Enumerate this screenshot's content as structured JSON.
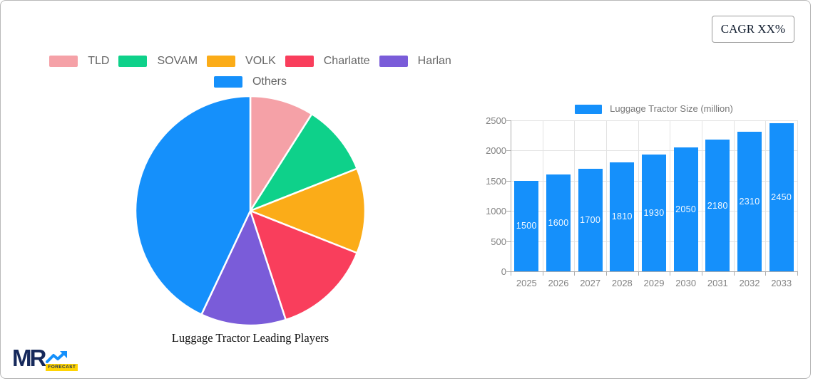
{
  "header": {
    "cagr_label": "CAGR XX%"
  },
  "logo": {
    "mr": "MR",
    "forecast": "FORECAST"
  },
  "chart_data": [
    {
      "type": "pie",
      "title": "Luggage Tractor Leading Players",
      "labels": [
        "TLD",
        "SOVAM",
        "VOLK",
        "Charlatte",
        "Harlan",
        "Others"
      ],
      "values_percent_est": [
        9,
        10,
        12,
        14,
        12,
        43
      ],
      "colors": [
        "#F5A1A7",
        "#0ED18A",
        "#FBAC18",
        "#F93E5C",
        "#7A5CD9",
        "#1590FB"
      ],
      "legend_rows": [
        5,
        1
      ],
      "legend_position": "top",
      "start_angle_deg": 0,
      "direction": "clockwise"
    },
    {
      "type": "bar",
      "legend": "Luggage Tractor Size (million)",
      "categories": [
        "2025",
        "2026",
        "2027",
        "2028",
        "2029",
        "2030",
        "2031",
        "2032",
        "2033"
      ],
      "values": [
        1500,
        1600,
        1700,
        1810,
        1930,
        2050,
        2180,
        2310,
        2450
      ],
      "bar_color": "#1590FB",
      "value_label_color": "#FFFFFF",
      "ylim": [
        0,
        2500
      ],
      "yticks": [
        0,
        500,
        1000,
        1500,
        2000,
        2500
      ],
      "grid": true,
      "legend_position": "top"
    }
  ]
}
